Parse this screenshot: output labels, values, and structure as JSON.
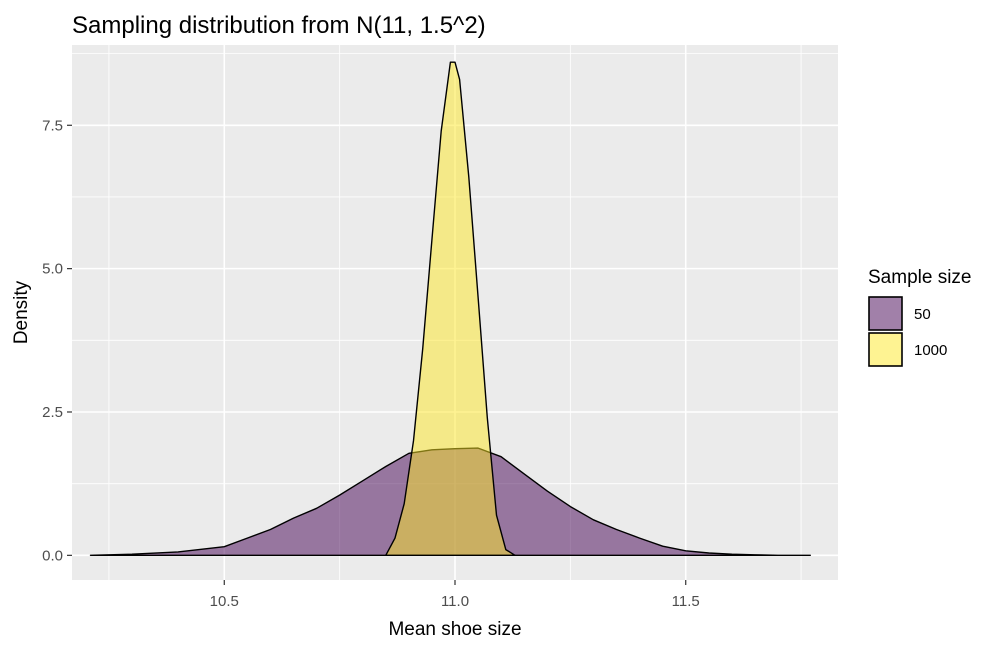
{
  "chart_data": {
    "type": "area",
    "title": "Sampling distribution from N(11, 1.5^2)",
    "xlabel": "Mean shoe size",
    "ylabel": "Density",
    "xlim": [
      10.17,
      11.83
    ],
    "ylim": [
      -0.43,
      8.9
    ],
    "x_ticks": [
      10.5,
      11.0,
      11.5
    ],
    "x_tick_labels": [
      "10.5",
      "11.0",
      "11.5"
    ],
    "y_ticks": [
      0,
      2.5,
      5,
      7.5
    ],
    "y_tick_labels": [
      "0.0",
      "2.5",
      "5.0",
      "7.5"
    ],
    "grid": true,
    "legend": {
      "title": "Sample size",
      "position": "right"
    },
    "series": [
      {
        "name": "50",
        "color": "#440154",
        "x": [
          10.21,
          10.3,
          10.4,
          10.5,
          10.55,
          10.6,
          10.65,
          10.7,
          10.75,
          10.8,
          10.85,
          10.9,
          10.95,
          11.0,
          11.05,
          11.1,
          11.15,
          11.2,
          11.25,
          11.3,
          11.35,
          11.4,
          11.45,
          11.5,
          11.55,
          11.6,
          11.65,
          11.7,
          11.77
        ],
        "y": [
          0.0,
          0.02,
          0.06,
          0.15,
          0.3,
          0.45,
          0.65,
          0.82,
          1.05,
          1.3,
          1.55,
          1.78,
          1.84,
          1.86,
          1.87,
          1.72,
          1.42,
          1.12,
          0.85,
          0.62,
          0.45,
          0.3,
          0.16,
          0.08,
          0.04,
          0.02,
          0.01,
          0.0,
          0.0
        ]
      },
      {
        "name": "1000",
        "color": "#fde725",
        "x": [
          10.85,
          10.87,
          10.89,
          10.91,
          10.93,
          10.95,
          10.97,
          10.99,
          11.0,
          11.01,
          11.03,
          11.05,
          11.07,
          11.09,
          11.11,
          11.13
        ],
        "y": [
          0.0,
          0.3,
          0.9,
          2.0,
          3.6,
          5.5,
          7.4,
          8.6,
          8.6,
          8.3,
          6.6,
          4.5,
          2.4,
          0.7,
          0.1,
          0.0
        ]
      }
    ]
  }
}
